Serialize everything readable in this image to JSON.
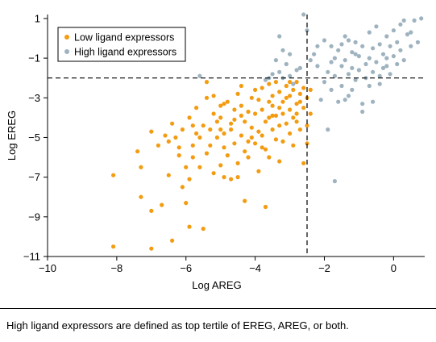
{
  "chart_data": {
    "type": "scatter",
    "xlabel": "Log AREG",
    "ylabel": "Log EREG",
    "xlim": [
      -10,
      0.9
    ],
    "ylim": [
      -11,
      1.2
    ],
    "xticks": [
      -10,
      -8,
      -6,
      -4,
      -2,
      0
    ],
    "yticks": [
      1,
      -1,
      -3,
      -5,
      -7,
      -9,
      -11
    ],
    "xtick_labels": [
      "−10",
      "−8",
      "−6",
      "−4",
      "−2",
      "0"
    ],
    "ytick_labels": [
      "1",
      "−1",
      "−3",
      "−5",
      "−7",
      "−9",
      "−11"
    ],
    "reference_lines": {
      "x": -2.5,
      "y": -2.0,
      "style": "dashed"
    },
    "grid": false,
    "legend_position": "top-left",
    "series": [
      {
        "name": "Low ligand expressors",
        "color": "#f39c12",
        "points": [
          [
            -8.1,
            -6.9
          ],
          [
            -8.1,
            -10.5
          ],
          [
            -7.4,
            -5.7
          ],
          [
            -7.3,
            -6.5
          ],
          [
            -7.3,
            -8.0
          ],
          [
            -7.0,
            -4.7
          ],
          [
            -7.0,
            -8.7
          ],
          [
            -7.0,
            -10.6
          ],
          [
            -6.8,
            -5.4
          ],
          [
            -6.7,
            -8.4
          ],
          [
            -6.6,
            -4.9
          ],
          [
            -6.5,
            -5.2
          ],
          [
            -6.5,
            -6.9
          ],
          [
            -6.4,
            -10.2
          ],
          [
            -6.4,
            -4.3
          ],
          [
            -6.3,
            -5.0
          ],
          [
            -6.2,
            -5.9
          ],
          [
            -6.1,
            -7.5
          ],
          [
            -6.1,
            -4.6
          ],
          [
            -6.0,
            -6.5
          ],
          [
            -6.0,
            -8.3
          ],
          [
            -5.9,
            -7.1
          ],
          [
            -5.9,
            -4.0
          ],
          [
            -5.9,
            -9.5
          ],
          [
            -5.8,
            -6.0
          ],
          [
            -5.8,
            -5.4
          ],
          [
            -5.7,
            -4.8
          ],
          [
            -5.7,
            -3.5
          ],
          [
            -5.6,
            -6.5
          ],
          [
            -5.6,
            -5.0
          ],
          [
            -5.5,
            -4.4
          ],
          [
            -5.5,
            -9.6
          ],
          [
            -5.4,
            -5.8
          ],
          [
            -5.4,
            -3.0
          ],
          [
            -5.4,
            -2.2
          ],
          [
            -5.3,
            -4.6
          ],
          [
            -5.3,
            -5.4
          ],
          [
            -5.2,
            -6.8
          ],
          [
            -5.2,
            -3.8
          ],
          [
            -5.1,
            -5.0
          ],
          [
            -5.1,
            -4.2
          ],
          [
            -5.0,
            -6.4
          ],
          [
            -5.0,
            -4.0
          ],
          [
            -5.0,
            -3.4
          ],
          [
            -4.9,
            -7.0
          ],
          [
            -4.9,
            -5.5
          ],
          [
            -4.9,
            -4.8
          ],
          [
            -4.8,
            -5.9
          ],
          [
            -4.8,
            -3.2
          ],
          [
            -4.7,
            -7.1
          ],
          [
            -4.7,
            -4.6
          ],
          [
            -4.6,
            -4.1
          ],
          [
            -4.6,
            -5.3
          ],
          [
            -4.6,
            -3.6
          ],
          [
            -4.5,
            -6.3
          ],
          [
            -4.5,
            -2.8
          ],
          [
            -4.5,
            -7.0
          ],
          [
            -4.4,
            -4.9
          ],
          [
            -4.4,
            -2.4
          ],
          [
            -4.3,
            -4.2
          ],
          [
            -4.3,
            -5.7
          ],
          [
            -4.3,
            -8.2
          ],
          [
            -4.2,
            -3.7
          ],
          [
            -4.2,
            -6.0
          ],
          [
            -4.1,
            -3.0
          ],
          [
            -4.1,
            -4.5
          ],
          [
            -4.1,
            -5.0
          ],
          [
            -4.0,
            -5.3
          ],
          [
            -4.0,
            -3.8
          ],
          [
            -4.0,
            -2.6
          ],
          [
            -3.9,
            -6.7
          ],
          [
            -3.9,
            -4.7
          ],
          [
            -3.8,
            -3.6
          ],
          [
            -3.8,
            -4.9
          ],
          [
            -3.8,
            -2.5
          ],
          [
            -3.7,
            -4.2
          ],
          [
            -3.7,
            -5.6
          ],
          [
            -3.7,
            -8.5
          ],
          [
            -3.6,
            -3.2
          ],
          [
            -3.6,
            -4.0
          ],
          [
            -3.6,
            -6.0
          ],
          [
            -3.5,
            -2.9
          ],
          [
            -3.5,
            -4.6
          ],
          [
            -3.5,
            -3.4
          ],
          [
            -3.4,
            -5.1
          ],
          [
            -3.4,
            -2.2
          ],
          [
            -3.4,
            -3.9
          ],
          [
            -3.3,
            -4.4
          ],
          [
            -3.3,
            -2.7
          ],
          [
            -3.3,
            -6.2
          ],
          [
            -3.2,
            -3.2
          ],
          [
            -3.2,
            -3.8
          ],
          [
            -3.2,
            -5.2
          ],
          [
            -3.1,
            -2.4
          ],
          [
            -3.1,
            -4.3
          ],
          [
            -3.1,
            -3.0
          ],
          [
            -3.0,
            -4.8
          ],
          [
            -3.0,
            -2.9
          ],
          [
            -3.0,
            -3.6
          ],
          [
            -2.9,
            -5.4
          ],
          [
            -2.9,
            -2.6
          ],
          [
            -2.9,
            -4.0
          ],
          [
            -2.8,
            -3.3
          ],
          [
            -2.8,
            -2.2
          ],
          [
            -2.8,
            -3.8
          ],
          [
            -2.7,
            -4.6
          ],
          [
            -2.7,
            -2.8
          ],
          [
            -2.7,
            -3.2
          ],
          [
            -2.6,
            -3.5
          ],
          [
            -2.6,
            -2.5
          ],
          [
            -2.6,
            -6.3
          ],
          [
            -2.5,
            -3.0
          ],
          [
            -2.5,
            -5.3
          ],
          [
            -2.4,
            -2.6
          ],
          [
            -2.4,
            -3.8
          ],
          [
            -2.5,
            -4.4
          ],
          [
            -3.9,
            -3.1
          ],
          [
            -4.9,
            -3.3
          ],
          [
            -5.2,
            -2.9
          ],
          [
            -3.6,
            -2.3
          ],
          [
            -3.0,
            -2.2
          ],
          [
            -3.3,
            -3.5
          ],
          [
            -4.4,
            -3.9
          ],
          [
            -4.7,
            -4.3
          ],
          [
            -5.8,
            -4.4
          ],
          [
            -6.2,
            -5.5
          ],
          [
            -4.2,
            -5.2
          ],
          [
            -3.8,
            -5.5
          ],
          [
            -2.8,
            -4.2
          ],
          [
            -3.5,
            -3.9
          ],
          [
            -4.4,
            -3.4
          ],
          [
            -5.0,
            -4.6
          ]
        ]
      },
      {
        "name": "High ligand expressors",
        "color": "#9eb3bf",
        "points": [
          [
            -2.6,
            1.2
          ],
          [
            -2.5,
            0.4
          ],
          [
            -2.3,
            -0.8
          ],
          [
            -2.2,
            -1.4
          ],
          [
            -2.1,
            -3.1
          ],
          [
            -2.0,
            -0.1
          ],
          [
            -2.0,
            -2.2
          ],
          [
            -1.9,
            -1.7
          ],
          [
            -1.8,
            -0.4
          ],
          [
            -1.8,
            -2.6
          ],
          [
            -1.7,
            -1.0
          ],
          [
            -1.7,
            -1.9
          ],
          [
            -1.6,
            -3.2
          ],
          [
            -1.6,
            -0.6
          ],
          [
            -1.5,
            -1.4
          ],
          [
            -1.5,
            -2.4
          ],
          [
            -1.4,
            0.1
          ],
          [
            -1.4,
            -1.1
          ],
          [
            -1.3,
            -1.8
          ],
          [
            -1.3,
            -2.9
          ],
          [
            -1.2,
            -0.7
          ],
          [
            -1.2,
            -1.5
          ],
          [
            -1.1,
            -0.2
          ],
          [
            -1.1,
            -2.1
          ],
          [
            -1.0,
            -0.9
          ],
          [
            -1.0,
            -1.6
          ],
          [
            -0.9,
            -3.3
          ],
          [
            -0.9,
            -0.4
          ],
          [
            -0.8,
            -1.3
          ],
          [
            -0.8,
            -2.0
          ],
          [
            -0.7,
            0.3
          ],
          [
            -0.7,
            -1.0
          ],
          [
            -0.6,
            -0.5
          ],
          [
            -0.6,
            -1.7
          ],
          [
            -0.5,
            0.6
          ],
          [
            -0.5,
            -1.2
          ],
          [
            -0.4,
            -0.3
          ],
          [
            -0.4,
            -2.3
          ],
          [
            -0.3,
            -0.8
          ],
          [
            -0.3,
            -1.5
          ],
          [
            -0.2,
            0.1
          ],
          [
            -0.2,
            -1.0
          ],
          [
            -0.1,
            -0.4
          ],
          [
            -0.1,
            -1.8
          ],
          [
            0.0,
            0.4
          ],
          [
            0.0,
            -0.9
          ],
          [
            0.1,
            -0.2
          ],
          [
            0.1,
            -1.3
          ],
          [
            0.2,
            0.7
          ],
          [
            0.2,
            -0.6
          ],
          [
            0.3,
            -1.1
          ],
          [
            0.4,
            0.2
          ],
          [
            0.5,
            -0.4
          ],
          [
            0.6,
            0.9
          ],
          [
            0.7,
            -0.2
          ],
          [
            0.8,
            1.0
          ],
          [
            -1.7,
            -7.2
          ],
          [
            -1.9,
            -4.6
          ],
          [
            -1.4,
            -3.1
          ],
          [
            -0.9,
            -3.7
          ],
          [
            -0.6,
            -3.2
          ],
          [
            -0.7,
            -2.4
          ],
          [
            -1.2,
            -2.6
          ],
          [
            -2.4,
            -1.1
          ],
          [
            -2.8,
            -1.6
          ],
          [
            -3.0,
            -1.9
          ],
          [
            -3.1,
            -1.3
          ],
          [
            -3.2,
            -2.0
          ],
          [
            -3.3,
            -1.7
          ],
          [
            -3.4,
            -1.1
          ],
          [
            -3.5,
            -1.8
          ],
          [
            -3.6,
            -2.0
          ],
          [
            -3.7,
            -2.1
          ],
          [
            -3.2,
            -0.6
          ],
          [
            -3.0,
            -0.8
          ],
          [
            -2.9,
            -2.3
          ],
          [
            -2.7,
            -1.5
          ],
          [
            -5.6,
            -1.9
          ],
          [
            -3.3,
            0.1
          ],
          [
            -2.2,
            -0.4
          ],
          [
            -1.8,
            -1.2
          ],
          [
            -1.5,
            -0.3
          ],
          [
            -1.1,
            -0.8
          ],
          [
            -1.3,
            -0.1
          ],
          [
            -0.2,
            -1.4
          ],
          [
            -0.4,
            -1.9
          ],
          [
            0.5,
            0.3
          ],
          [
            0.3,
            0.9
          ]
        ]
      }
    ]
  },
  "caption": "High ligand expressors are defined as top tertile of EREG, AREG, or both."
}
